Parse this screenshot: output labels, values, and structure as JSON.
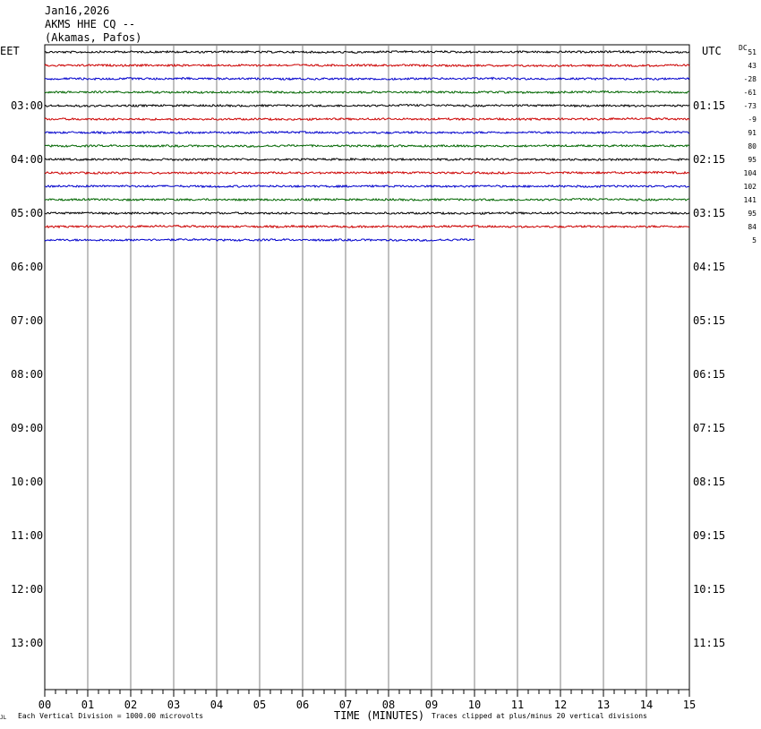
{
  "header": {
    "date": "Jan16,2026",
    "station": "AKMS HHE CQ --",
    "location": "(Akamas, Pafos)"
  },
  "left_zone_label": "EET",
  "right_zone_label": "UTC",
  "dc_label": "DC",
  "footer": {
    "corner_mark": "JL",
    "scale_note": "Each Vertical Division = 1000.00 microvolts",
    "xlabel": "TIME (MINUTES)",
    "clip_note": "Traces clipped at plus/minus 20 vertical divisions"
  },
  "colors": {
    "trace_cycle": [
      "#000000",
      "#cc0000",
      "#0000cc",
      "#006600"
    ],
    "grid": "#808080"
  },
  "chart_data": {
    "type": "line",
    "x_ticks": [
      "00",
      "01",
      "02",
      "03",
      "04",
      "05",
      "06",
      "07",
      "08",
      "09",
      "10",
      "11",
      "12",
      "13",
      "14",
      "15"
    ],
    "xlim": [
      0,
      15
    ],
    "left_hour_labels": [
      "03:00",
      "04:00",
      "05:00",
      "06:00",
      "07:00",
      "08:00",
      "09:00",
      "10:00",
      "11:00",
      "12:00",
      "13:00"
    ],
    "right_hour_labels": [
      "01:15",
      "02:15",
      "03:15",
      "04:15",
      "05:15",
      "06:15",
      "07:15",
      "08:15",
      "09:15",
      "10:15",
      "11:15"
    ],
    "traces_per_hour": 4,
    "trace_minutes": 15,
    "traces": [
      {
        "dc": "51",
        "end_minute": 15
      },
      {
        "dc": "43",
        "end_minute": 15
      },
      {
        "dc": "-28",
        "end_minute": 15
      },
      {
        "dc": "-61",
        "end_minute": 15
      },
      {
        "dc": "-73",
        "end_minute": 15
      },
      {
        "dc": "-9",
        "end_minute": 15
      },
      {
        "dc": "91",
        "end_minute": 15
      },
      {
        "dc": "80",
        "end_minute": 15
      },
      {
        "dc": "95",
        "end_minute": 15
      },
      {
        "dc": "104",
        "end_minute": 15
      },
      {
        "dc": "102",
        "end_minute": 15
      },
      {
        "dc": "141",
        "end_minute": 15
      },
      {
        "dc": "95",
        "end_minute": 15
      },
      {
        "dc": "84",
        "end_minute": 15
      },
      {
        "dc": "5",
        "end_minute": 10
      }
    ]
  }
}
